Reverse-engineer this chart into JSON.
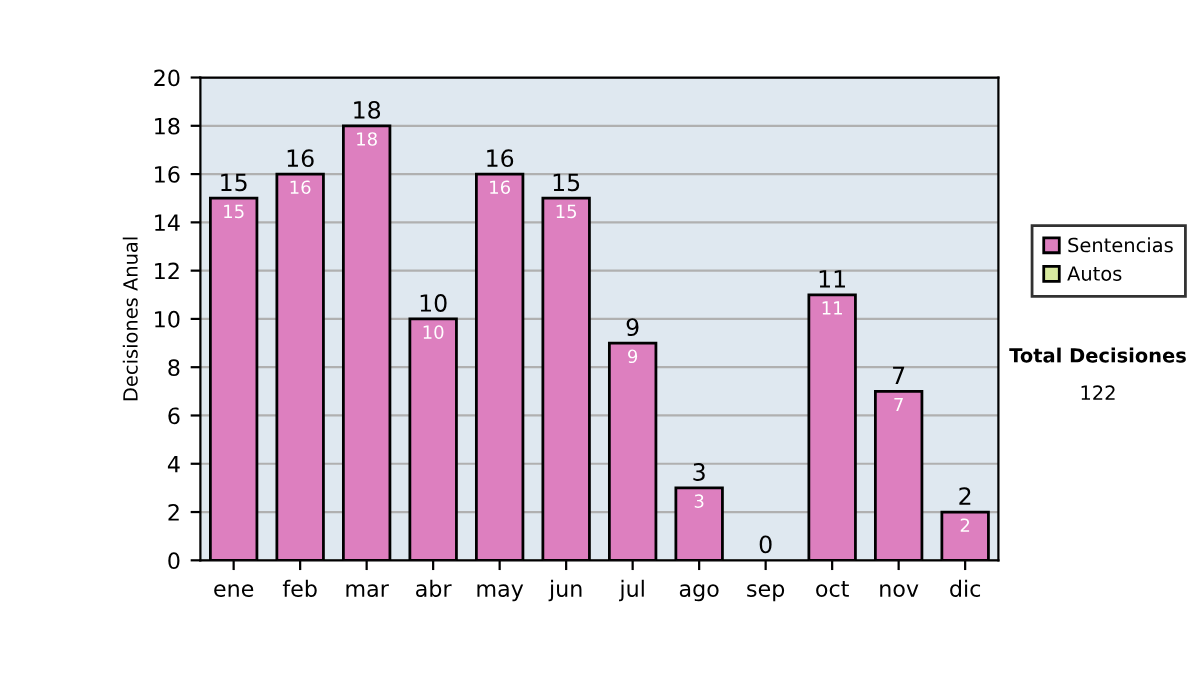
{
  "chart_data": {
    "type": "bar",
    "ylabel": "Decisiones Anual",
    "categories": [
      "ene",
      "feb",
      "mar",
      "abr",
      "may",
      "jun",
      "jul",
      "ago",
      "sep",
      "oct",
      "nov",
      "dic"
    ],
    "series": [
      {
        "name": "Sentencias",
        "color": "#dd7fbf",
        "values": [
          15,
          16,
          18,
          10,
          16,
          15,
          9,
          3,
          0,
          11,
          7,
          2
        ],
        "value_labels": [
          "15",
          "16",
          "18",
          "10",
          "16",
          "15",
          "9",
          "3",
          null,
          "11",
          "7",
          "2"
        ]
      },
      {
        "name": "Autos",
        "color": "#d8eaa0",
        "values": [
          0,
          0,
          0,
          0,
          0,
          0,
          0,
          0,
          0,
          0,
          0,
          0
        ]
      }
    ],
    "stacked": true,
    "totals": [
      "15",
      "16",
      "18",
      "10",
      "16",
      "15",
      "9",
      "3",
      "0",
      "11",
      "7",
      "2"
    ],
    "ylim": [
      0,
      20
    ],
    "yticks": [
      0,
      2,
      4,
      6,
      8,
      10,
      12,
      14,
      16,
      18,
      20
    ],
    "grid": "y",
    "legend": "right",
    "annotations": [
      "Total Decisiones",
      "122"
    ]
  }
}
